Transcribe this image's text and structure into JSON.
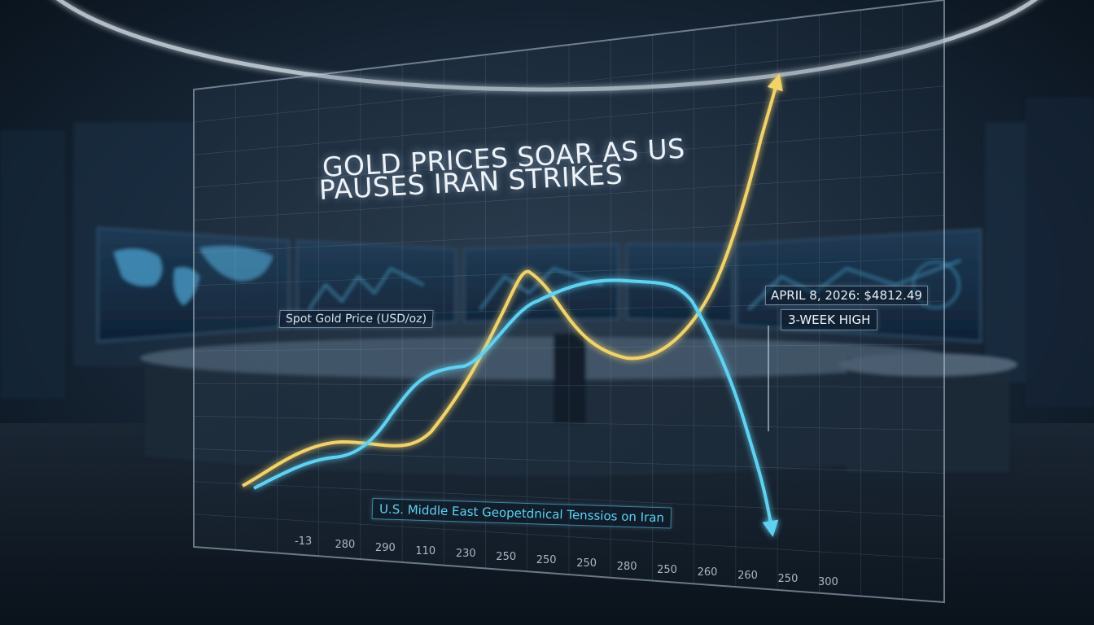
{
  "headline": {
    "line1": "GOLD PRICES SOAR AS US",
    "line2": "PAUSES IRAN STRIKES"
  },
  "series_label": "Spot Gold Price (USD/oz)",
  "annotation": {
    "date_value": "APRIL 8, 2026: $4812.49",
    "badge": "3-WEEK HIGH"
  },
  "event_label": "U.S. Middle East Geopetdnical Tenssios on Iran",
  "x_axis_ticks": [
    "-13",
    "280",
    "290",
    "110",
    "230",
    "250",
    "250",
    "250",
    "280",
    "250",
    "260",
    "260",
    "250",
    "300"
  ],
  "colors": {
    "gold_line": "#f2d36b",
    "blue_line": "#5fd2f2",
    "background": "#0b1724",
    "panel_border": "#b8c8d8"
  },
  "scene_elements": [
    "world-map-monitor",
    "dashboard-monitor",
    "control-room-desk",
    "ceiling-light-ring"
  ]
}
